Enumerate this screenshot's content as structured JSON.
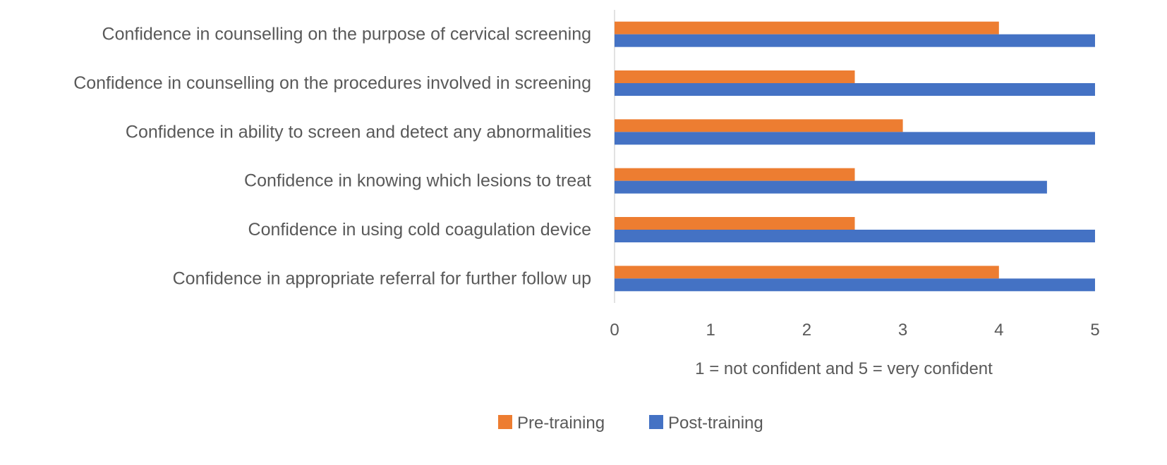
{
  "chart_data": {
    "type": "bar",
    "orientation": "horizontal",
    "categories": [
      "Confidence in counselling on the purpose of cervical screening",
      "Confidence in counselling on the procedures involved in screening",
      "Confidence in ability to screen and detect any abnormalities",
      "Confidence in knowing which lesions to treat",
      "Confidence in using cold coagulation device",
      "Confidence in appropriate referral for further follow up"
    ],
    "series": [
      {
        "name": "Pre-training",
        "color": "#ED7D31",
        "values": [
          4,
          2.5,
          3,
          2.5,
          2.5,
          4
        ]
      },
      {
        "name": "Post-training",
        "color": "#4472C4",
        "values": [
          5,
          5,
          5,
          4.5,
          5,
          5
        ]
      }
    ],
    "xlabel": "1 = not confident and 5 = very confident",
    "ylabel": "",
    "xlim": [
      0,
      5
    ],
    "xticks": [
      "0",
      "1",
      "2",
      "3",
      "4",
      "5"
    ],
    "grid": false,
    "legend": "bottom"
  }
}
